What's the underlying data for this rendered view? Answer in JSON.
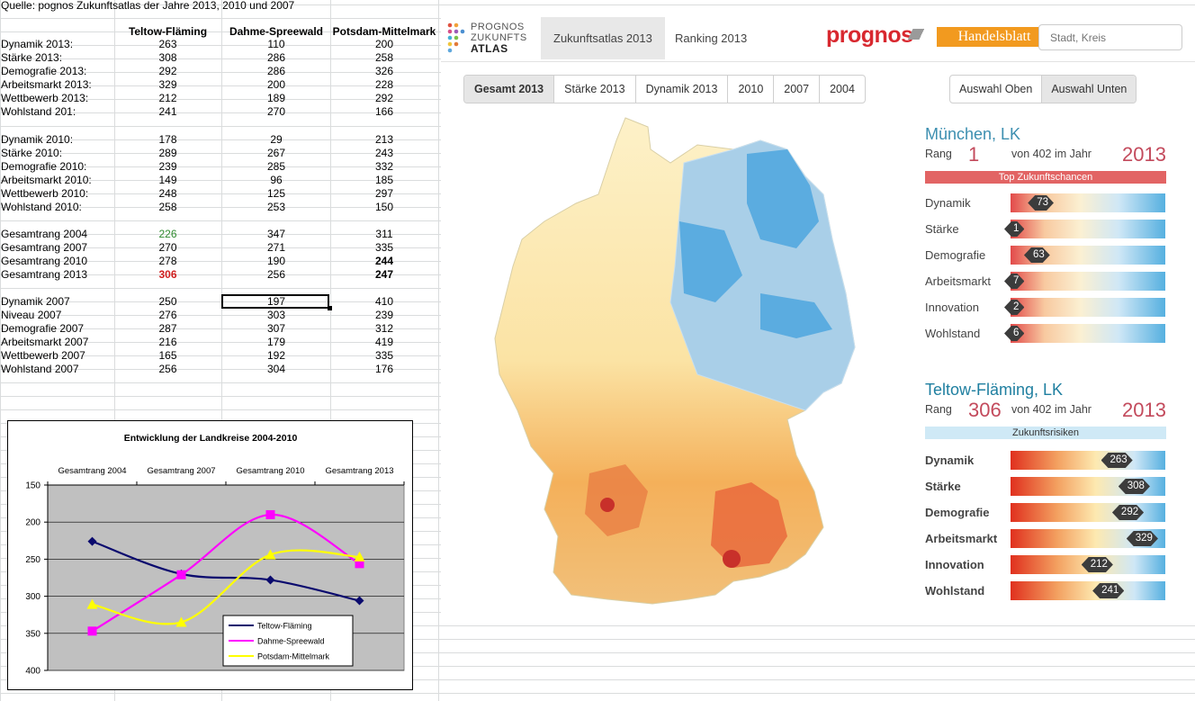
{
  "source_note": "Quelle: pognos Zukunftsatlas der Jahre 2013, 2010 und 2007",
  "table": {
    "headers": [
      "Teltow-Fläming",
      "Dahme-Spreewald",
      "Potsdam-Mittelmark"
    ],
    "rows": [
      {
        "label": "Dynamik 2013:",
        "v": [
          "263",
          "110",
          "200"
        ]
      },
      {
        "label": "Stärke 2013:",
        "v": [
          "308",
          "286",
          "258"
        ]
      },
      {
        "label": "Demografie 2013:",
        "v": [
          "292",
          "286",
          "326"
        ]
      },
      {
        "label": "Arbeitsmarkt 2013:",
        "v": [
          "329",
          "200",
          "228"
        ]
      },
      {
        "label": "Wettbewerb 2013:",
        "v": [
          "212",
          "189",
          "292"
        ]
      },
      {
        "label": "Wohlstand 201:",
        "v": [
          "241",
          "270",
          "166"
        ]
      },
      {
        "label": "Dynamik 2010:",
        "v": [
          "178",
          "29",
          "213"
        ]
      },
      {
        "label": "Stärke 2010:",
        "v": [
          "289",
          "267",
          "243"
        ]
      },
      {
        "label": "Demografie 2010:",
        "v": [
          "239",
          "285",
          "332"
        ]
      },
      {
        "label": "Arbeitsmarkt 2010:",
        "v": [
          "149",
          "96",
          "185"
        ]
      },
      {
        "label": "Wettbewerb 2010:",
        "v": [
          "248",
          "125",
          "297"
        ]
      },
      {
        "label": "Wohlstand 2010:",
        "v": [
          "258",
          "253",
          "150"
        ]
      },
      {
        "label": "Gesamtrang 2004",
        "v": [
          "226",
          "347",
          "311"
        ]
      },
      {
        "label": "Gesamtrang 2007",
        "v": [
          "270",
          "271",
          "335"
        ]
      },
      {
        "label": "Gesamtrang 2010",
        "v": [
          "278",
          "190",
          "244"
        ]
      },
      {
        "label": "Gesamtrang 2013",
        "v": [
          "306",
          "256",
          "247"
        ]
      },
      {
        "label": "Dynamik 2007",
        "v": [
          "250",
          "197",
          "410"
        ]
      },
      {
        "label": "Niveau 2007",
        "v": [
          "276",
          "303",
          "239"
        ]
      },
      {
        "label": "Demografie 2007",
        "v": [
          "287",
          "307",
          "312"
        ]
      },
      {
        "label": "Arbeitsmarkt 2007",
        "v": [
          "216",
          "179",
          "419"
        ]
      },
      {
        "label": "Wettbewerb 2007",
        "v": [
          "165",
          "192",
          "335"
        ]
      },
      {
        "label": "Wohlstand 2007",
        "v": [
          "256",
          "304",
          "176"
        ]
      }
    ]
  },
  "chart_data": {
    "type": "line",
    "title": "Entwicklung der Landkreise 2004-2010",
    "categories": [
      "Gesamtrang 2004",
      "Gesamtrang 2007",
      "Gesamtrang 2010",
      "Gesamtrang 2013"
    ],
    "series": [
      {
        "name": "Teltow-Fläming",
        "values": [
          226,
          270,
          278,
          306
        ],
        "color": "#0a0a6e"
      },
      {
        "name": "Dahme-Spreewald",
        "values": [
          347,
          271,
          190,
          256
        ],
        "color": "#ff00ff"
      },
      {
        "name": "Potsdam-Mittelmark",
        "values": [
          311,
          335,
          244,
          247
        ],
        "color": "#ffff00"
      }
    ],
    "y_ticks": [
      "150",
      "200",
      "250",
      "300",
      "350",
      "400"
    ],
    "ylim": [
      150,
      400
    ],
    "y_reversed": true,
    "x_axis_position": "top",
    "grid": true,
    "plot_bg": "#c0c0c0",
    "legend_position": "bottom-right"
  },
  "atlas": {
    "logo": {
      "line1": "PROGNOS",
      "line2": "ZUKUNFTS",
      "line3": "ATLAS"
    },
    "top_tabs": [
      "Zukunftsatlas 2013",
      "Ranking 2013"
    ],
    "brand": "prognos",
    "partner": "Handelsblatt",
    "search_placeholder": "Stadt, Kreis",
    "year_tabs": [
      "Gesamt 2013",
      "Stärke 2013",
      "Dynamik 2013",
      "2010",
      "2007",
      "2004"
    ],
    "select_tabs": [
      "Auswahl Oben",
      "Auswahl Unten"
    ],
    "region_top": {
      "name": "München, LK",
      "rang_label": "Rang",
      "rank": "1",
      "von": "von 402 im Jahr",
      "year": "2013",
      "banner": "Top Zukunftschancen",
      "banner_color": "#e26464",
      "metrics": [
        {
          "label": "Dynamik",
          "value": "73"
        },
        {
          "label": "Stärke",
          "value": "1"
        },
        {
          "label": "Demografie",
          "value": "63"
        },
        {
          "label": "Arbeitsmarkt",
          "value": "7"
        },
        {
          "label": "Innovation",
          "value": "2"
        },
        {
          "label": "Wohlstand",
          "value": "6"
        }
      ]
    },
    "region_bottom": {
      "name": "Teltow-Fläming, LK",
      "rang_label": "Rang",
      "rank": "306",
      "von": "von 402 im Jahr",
      "year": "2013",
      "banner": "Zukunftsrisiken",
      "banner_color": "#cfe9f6",
      "metrics": [
        {
          "label": "Dynamik",
          "value": "263"
        },
        {
          "label": "Stärke",
          "value": "308"
        },
        {
          "label": "Demografie",
          "value": "292"
        },
        {
          "label": "Arbeitsmarkt",
          "value": "329"
        },
        {
          "label": "Innovation",
          "value": "212"
        },
        {
          "label": "Wohlstand",
          "value": "241"
        }
      ]
    },
    "colors": {
      "title_top": "#3d8fb0",
      "title_bottom": "#1f7fa0",
      "rank_red": "#c34a5c"
    }
  }
}
